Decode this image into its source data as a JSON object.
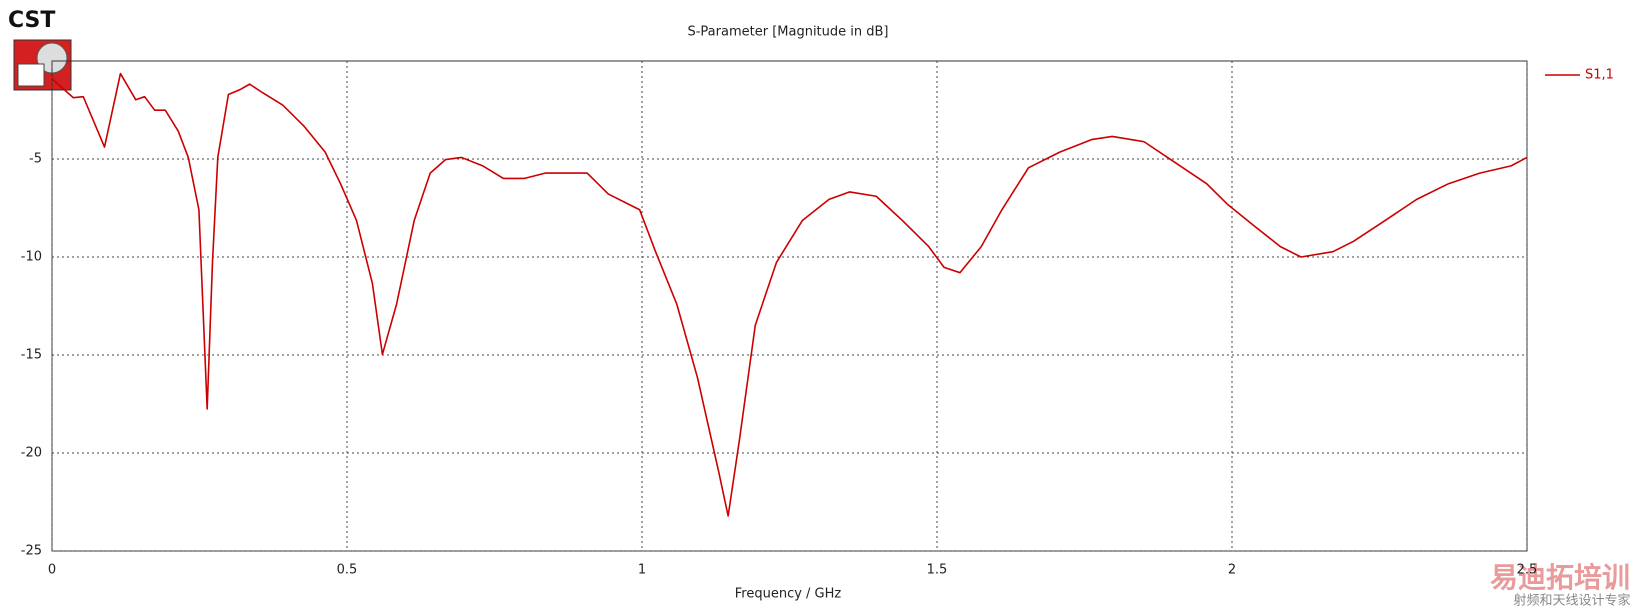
{
  "logo": "CST",
  "watermark": {
    "title": "易迪拓培训",
    "subtitle": "射频和天线设计专家"
  },
  "chart_data": {
    "type": "line",
    "title": "S-Parameter [Magnitude in dB]",
    "x_label": "Frequency / GHz",
    "xlim": [
      0,
      2.5
    ],
    "ylim": [
      -25,
      0
    ],
    "xticks": [
      0,
      0.5,
      1,
      1.5,
      2,
      2.5
    ],
    "yticks": [
      -25,
      -20,
      -15,
      -10,
      -5
    ],
    "grid": true,
    "legend": "top-right",
    "x": [
      0,
      0.036,
      0.053,
      0.089,
      0.116,
      0.142,
      0.157,
      0.174,
      0.192,
      0.214,
      0.231,
      0.249,
      0.263,
      0.272,
      0.281,
      0.299,
      0.32,
      0.335,
      0.356,
      0.391,
      0.427,
      0.463,
      0.489,
      0.516,
      0.543,
      0.56,
      0.584,
      0.614,
      0.641,
      0.667,
      0.694,
      0.73,
      0.765,
      0.801,
      0.836,
      0.872,
      0.907,
      0.943,
      0.996,
      1.023,
      1.059,
      1.094,
      1.13,
      1.146,
      1.165,
      1.192,
      1.228,
      1.272,
      1.317,
      1.352,
      1.397,
      1.441,
      1.486,
      1.512,
      1.539,
      1.575,
      1.61,
      1.655,
      1.708,
      1.762,
      1.797,
      1.851,
      1.904,
      1.957,
      1.993,
      2.037,
      2.082,
      2.117,
      2.171,
      2.206,
      2.26,
      2.313,
      2.367,
      2.42,
      2.473,
      2.5
    ],
    "series": [
      {
        "name": "S1,1",
        "color": "#cc0000",
        "values": [
          -0.91,
          -1.87,
          -1.82,
          -4.39,
          -0.64,
          -1.98,
          -1.82,
          -2.51,
          -2.51,
          -3.58,
          -4.92,
          -7.59,
          -17.75,
          -10.27,
          -4.92,
          -1.71,
          -1.44,
          -1.18,
          -1.6,
          -2.25,
          -3.32,
          -4.65,
          -6.26,
          -8.13,
          -11.34,
          -14.97,
          -12.41,
          -8.13,
          -5.72,
          -5.03,
          -4.92,
          -5.35,
          -5.99,
          -5.99,
          -5.72,
          -5.72,
          -5.72,
          -6.79,
          -7.59,
          -9.73,
          -12.41,
          -16.15,
          -20.96,
          -23.21,
          -19.36,
          -13.48,
          -10.27,
          -8.13,
          -7.06,
          -6.68,
          -6.9,
          -8.13,
          -9.47,
          -10.53,
          -10.8,
          -9.47,
          -7.59,
          -5.45,
          -4.65,
          -4.01,
          -3.85,
          -4.12,
          -5.19,
          -6.26,
          -7.33,
          -8.4,
          -9.47,
          -10.0,
          -9.73,
          -9.2,
          -8.13,
          -7.06,
          -6.26,
          -5.72,
          -5.35,
          -4.92
        ]
      }
    ]
  }
}
